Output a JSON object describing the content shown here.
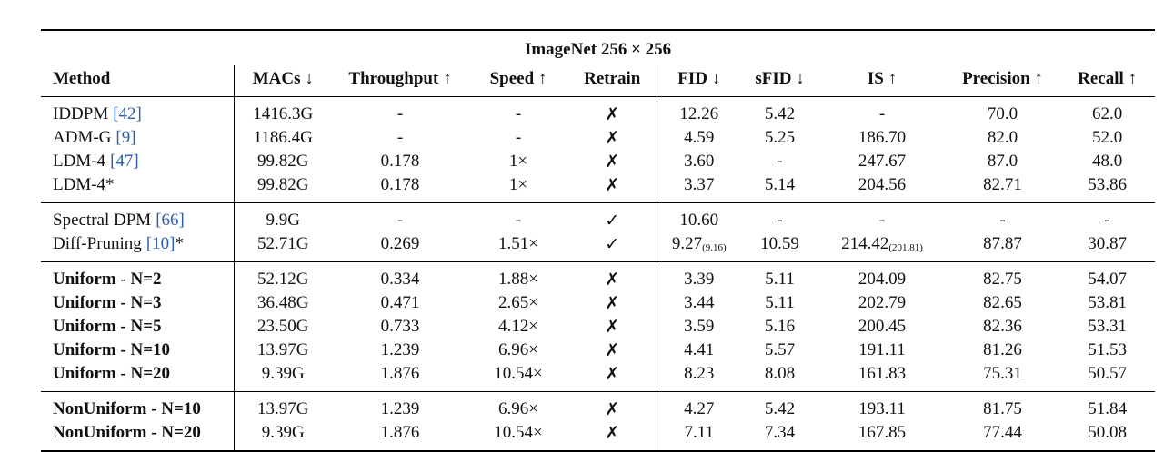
{
  "header": {
    "title": "ImageNet 256 × 256",
    "columns": [
      "Method",
      "MACs ↓",
      "Throughput ↑",
      "Speed ↑",
      "Retrain",
      "FID ↓",
      "sFID ↓",
      "IS ↑",
      "Precision ↑",
      "Recall ↑"
    ]
  },
  "groups": [
    {
      "bold": false,
      "rows": [
        {
          "method": {
            "name": "IDDPM",
            "ref": "[42]"
          },
          "cells": [
            "1416.3G",
            "-",
            "-",
            "✗",
            "12.26",
            "5.42",
            "-",
            "70.0",
            "62.0"
          ]
        },
        {
          "method": {
            "name": "ADM-G",
            "ref": "[9]"
          },
          "cells": [
            "1186.4G",
            "-",
            "-",
            "✗",
            "4.59",
            "5.25",
            "186.70",
            "82.0",
            "52.0"
          ]
        },
        {
          "method": {
            "name": "LDM-4",
            "ref": "[47]"
          },
          "cells": [
            "99.82G",
            "0.178",
            "1×",
            "✗",
            "3.60",
            "-",
            "247.67",
            "87.0",
            "48.0"
          ]
        },
        {
          "method": {
            "name": "LDM-4*"
          },
          "cells": [
            "99.82G",
            "0.178",
            "1×",
            "✗",
            "3.37",
            "5.14",
            "204.56",
            "82.71",
            "53.86"
          ]
        }
      ]
    },
    {
      "bold": false,
      "rows": [
        {
          "method": {
            "name": "Spectral DPM",
            "ref": "[66]"
          },
          "cells": [
            "9.9G",
            "-",
            "-",
            "✓",
            "10.60",
            "-",
            "-",
            "-",
            "-"
          ]
        },
        {
          "method": {
            "name": "Diff-Pruning",
            "ref": "[10]",
            "suffix": "*"
          },
          "cells": [
            "52.71G",
            "0.269",
            "1.51×",
            "✓",
            {
              "value": "9.27",
              "sub": "(9.16)"
            },
            "10.59",
            {
              "value": "214.42",
              "sub": "(201.81)"
            },
            "87.87",
            "30.87"
          ]
        }
      ]
    },
    {
      "bold": true,
      "rows": [
        {
          "method": {
            "name": "Uniform - N=2"
          },
          "cells": [
            "52.12G",
            "0.334",
            "1.88×",
            "✗",
            "3.39",
            "5.11",
            "204.09",
            "82.75",
            "54.07"
          ]
        },
        {
          "method": {
            "name": "Uniform - N=3"
          },
          "cells": [
            "36.48G",
            "0.471",
            "2.65×",
            "✗",
            "3.44",
            "5.11",
            "202.79",
            "82.65",
            "53.81"
          ]
        },
        {
          "method": {
            "name": "Uniform - N=5"
          },
          "cells": [
            "23.50G",
            "0.733",
            "4.12×",
            "✗",
            "3.59",
            "5.16",
            "200.45",
            "82.36",
            "53.31"
          ]
        },
        {
          "method": {
            "name": "Uniform - N=10"
          },
          "cells": [
            "13.97G",
            "1.239",
            "6.96×",
            "✗",
            "4.41",
            "5.57",
            "191.11",
            "81.26",
            "51.53"
          ]
        },
        {
          "method": {
            "name": "Uniform - N=20"
          },
          "cells": [
            "9.39G",
            "1.876",
            "10.54×",
            "✗",
            "8.23",
            "8.08",
            "161.83",
            "75.31",
            "50.57"
          ]
        }
      ]
    },
    {
      "bold": true,
      "rows": [
        {
          "method": {
            "name": "NonUniform - N=10"
          },
          "cells": [
            "13.97G",
            "1.239",
            "6.96×",
            "✗",
            "4.27",
            "5.42",
            "193.11",
            "81.75",
            "51.84"
          ]
        },
        {
          "method": {
            "name": "NonUniform - N=20"
          },
          "cells": [
            "9.39G",
            "1.876",
            "10.54×",
            "✗",
            "7.11",
            "7.34",
            "167.85",
            "77.44",
            "50.08"
          ]
        }
      ]
    }
  ]
}
